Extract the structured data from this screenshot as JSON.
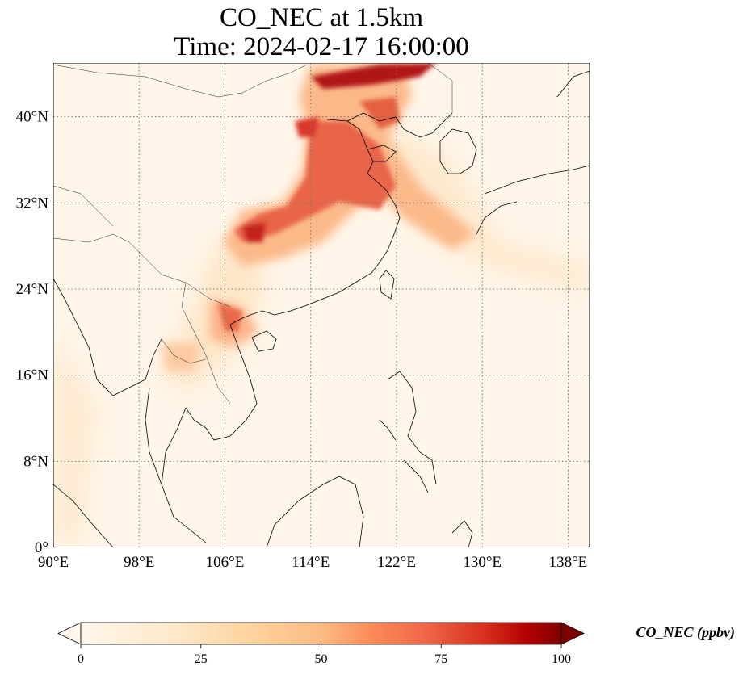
{
  "title": {
    "line1": "CO_NEC at 1.5km",
    "line2": "Time: 2024-02-17 16:00:00"
  },
  "map": {
    "lon_range": [
      90,
      140
    ],
    "lat_range": [
      0,
      45
    ],
    "lon_ticks": [
      {
        "value": 90,
        "label": "90°E"
      },
      {
        "value": 98,
        "label": "98°E"
      },
      {
        "value": 106,
        "label": "106°E"
      },
      {
        "value": 114,
        "label": "114°E"
      },
      {
        "value": 122,
        "label": "122°E"
      },
      {
        "value": 130,
        "label": "130°E"
      },
      {
        "value": 138,
        "label": "138°E"
      }
    ],
    "lat_ticks": [
      {
        "value": 0,
        "label": "0°"
      },
      {
        "value": 8,
        "label": "8°N"
      },
      {
        "value": 16,
        "label": "16°N"
      },
      {
        "value": 24,
        "label": "24°N"
      },
      {
        "value": 32,
        "label": "32°N"
      },
      {
        "value": 40,
        "label": "40°N"
      }
    ],
    "gridlines": "dotted",
    "colormap": "OrRd",
    "background_color": "#fff5e8"
  },
  "colorbar": {
    "label": "CO_NEC (ppbv)",
    "min": 0,
    "max": 100,
    "ticks": [
      {
        "value": 0,
        "label": "0"
      },
      {
        "value": 25,
        "label": "25"
      },
      {
        "value": 50,
        "label": "50"
      },
      {
        "value": 75,
        "label": "75"
      },
      {
        "value": 100,
        "label": "100"
      }
    ],
    "extend": "both"
  }
}
